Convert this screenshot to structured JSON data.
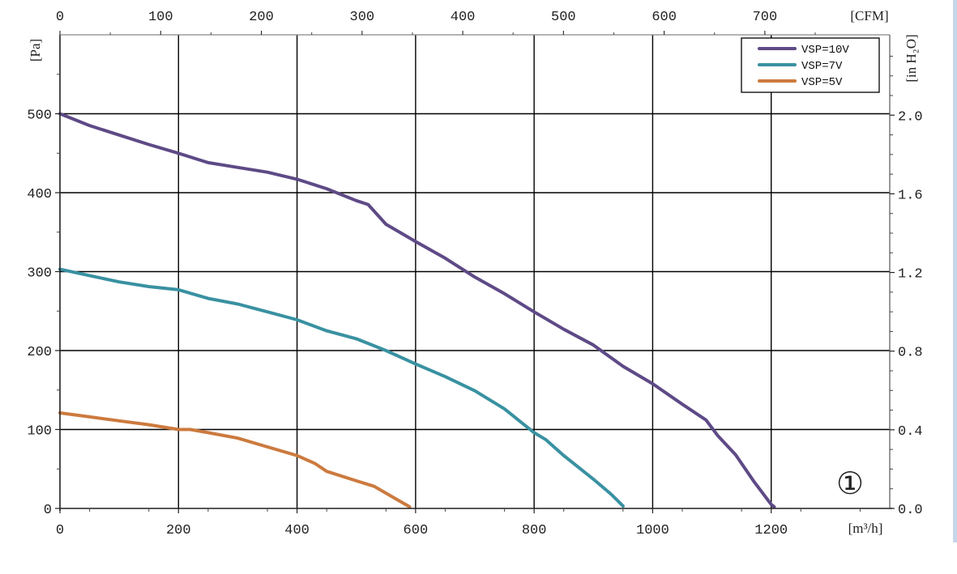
{
  "chart_data": {
    "type": "line",
    "title": "",
    "xlabel": "[m³/h]",
    "ylabel": "[Pa]",
    "x2label": "[CFM]",
    "y2label": "[in H₂O]",
    "xlim": [
      0,
      1400
    ],
    "ylim": [
      0,
      600
    ],
    "x_ticks": [
      "0",
      "200",
      "400",
      "600",
      "800",
      "1000",
      "1200"
    ],
    "y_ticks": [
      "0",
      "100",
      "200",
      "300",
      "400",
      "500"
    ],
    "x2_ticks": [
      "0",
      "100",
      "200",
      "300",
      "400",
      "500",
      "600",
      "700"
    ],
    "y2_ticks": [
      "0.0",
      "0.4",
      "0.8",
      "1.2",
      "1.6",
      "2.0"
    ],
    "grid": true,
    "legend_position": "top-right",
    "annotation": "①",
    "series": [
      {
        "name": "VSP=10V",
        "color": "#5e4a86",
        "points": [
          [
            0,
            500
          ],
          [
            50,
            485
          ],
          [
            100,
            473
          ],
          [
            150,
            461
          ],
          [
            200,
            450
          ],
          [
            250,
            438
          ],
          [
            300,
            432
          ],
          [
            350,
            426
          ],
          [
            400,
            417
          ],
          [
            450,
            405
          ],
          [
            500,
            390
          ],
          [
            520,
            385
          ],
          [
            550,
            360
          ],
          [
            600,
            338
          ],
          [
            650,
            317
          ],
          [
            700,
            293
          ],
          [
            750,
            272
          ],
          [
            800,
            249
          ],
          [
            850,
            227
          ],
          [
            900,
            207
          ],
          [
            950,
            180
          ],
          [
            1000,
            158
          ],
          [
            1050,
            132
          ],
          [
            1090,
            112
          ],
          [
            1110,
            92
          ],
          [
            1140,
            68
          ],
          [
            1170,
            35
          ],
          [
            1200,
            5
          ],
          [
            1205,
            2
          ]
        ]
      },
      {
        "name": "VSP=7V",
        "color": "#3991a1",
        "points": [
          [
            0,
            303
          ],
          [
            50,
            295
          ],
          [
            100,
            287
          ],
          [
            150,
            281
          ],
          [
            200,
            277
          ],
          [
            250,
            266
          ],
          [
            300,
            259
          ],
          [
            350,
            249
          ],
          [
            400,
            239
          ],
          [
            450,
            225
          ],
          [
            500,
            215
          ],
          [
            550,
            200
          ],
          [
            600,
            183
          ],
          [
            650,
            167
          ],
          [
            700,
            149
          ],
          [
            750,
            126
          ],
          [
            800,
            96
          ],
          [
            820,
            87
          ],
          [
            850,
            67
          ],
          [
            900,
            37
          ],
          [
            930,
            18
          ],
          [
            950,
            3
          ]
        ]
      },
      {
        "name": "VSP=5V",
        "color": "#cc7a3e",
        "points": [
          [
            0,
            121
          ],
          [
            50,
            116
          ],
          [
            100,
            111
          ],
          [
            150,
            106
          ],
          [
            200,
            100
          ],
          [
            220,
            100
          ],
          [
            250,
            96
          ],
          [
            300,
            89
          ],
          [
            350,
            78
          ],
          [
            400,
            67
          ],
          [
            430,
            57
          ],
          [
            450,
            47
          ],
          [
            500,
            35
          ],
          [
            530,
            28
          ],
          [
            560,
            15
          ],
          [
            590,
            2
          ]
        ]
      }
    ]
  }
}
